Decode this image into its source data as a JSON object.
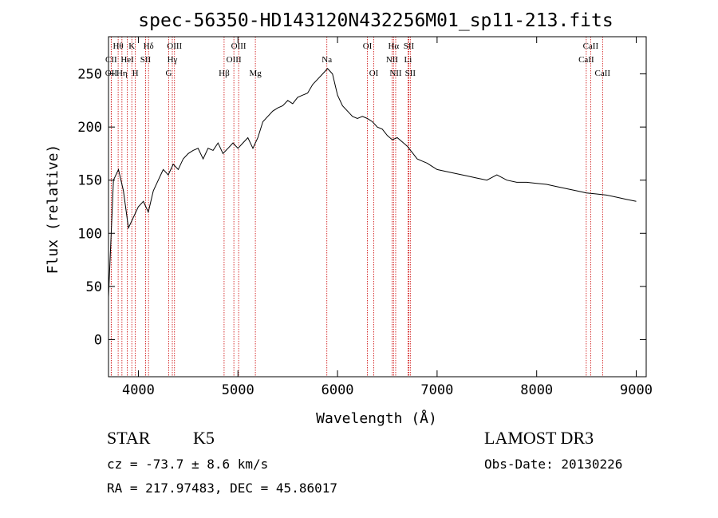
{
  "chart_data": {
    "type": "line",
    "title": "spec-56350-HD143120N432256M01_sp11-213.fits",
    "xlabel": "Wavelength (Å)",
    "ylabel": "Flux (relative)",
    "xlim": [
      3700,
      9100
    ],
    "ylim": [
      -35,
      285
    ],
    "xticks": [
      4000,
      5000,
      6000,
      7000,
      8000,
      9000
    ],
    "yticks": [
      0,
      50,
      100,
      150,
      200,
      250
    ],
    "grid": false,
    "series": [
      {
        "name": "spectrum",
        "color": "#000000",
        "x": [
          3700,
          3750,
          3800,
          3850,
          3900,
          3950,
          4000,
          4050,
          4100,
          4150,
          4200,
          4250,
          4300,
          4350,
          4400,
          4450,
          4500,
          4550,
          4600,
          4650,
          4700,
          4750,
          4800,
          4850,
          4900,
          4950,
          5000,
          5050,
          5100,
          5150,
          5200,
          5250,
          5300,
          5350,
          5400,
          5450,
          5500,
          5550,
          5600,
          5650,
          5700,
          5750,
          5800,
          5850,
          5900,
          5950,
          6000,
          6050,
          6100,
          6150,
          6200,
          6250,
          6300,
          6350,
          6400,
          6450,
          6500,
          6550,
          6600,
          6650,
          6700,
          6750,
          6800,
          6850,
          6900,
          6950,
          7000,
          7100,
          7200,
          7300,
          7400,
          7500,
          7600,
          7700,
          7800,
          7900,
          8000,
          8100,
          8200,
          8300,
          8400,
          8500,
          8600,
          8700,
          8800,
          8900,
          9000
        ],
        "y": [
          40,
          150,
          160,
          140,
          105,
          115,
          125,
          130,
          120,
          140,
          150,
          160,
          155,
          165,
          160,
          170,
          175,
          178,
          180,
          170,
          180,
          178,
          185,
          175,
          180,
          185,
          180,
          185,
          190,
          180,
          190,
          205,
          210,
          215,
          218,
          220,
          225,
          222,
          228,
          230,
          232,
          240,
          245,
          250,
          255,
          250,
          230,
          220,
          215,
          210,
          208,
          210,
          208,
          205,
          200,
          198,
          192,
          188,
          190,
          186,
          182,
          176,
          170,
          168,
          166,
          163,
          160,
          158,
          156,
          154,
          152,
          150,
          155,
          150,
          148,
          148,
          147,
          146,
          144,
          142,
          140,
          138,
          137,
          136,
          134,
          132,
          130
        ]
      }
    ],
    "line_labels": [
      {
        "label": "Hθ",
        "x": 3797,
        "row": 1
      },
      {
        "label": "CII",
        "x": 3727,
        "row": 2
      },
      {
        "label": "OII",
        "x": 3727,
        "row": 3
      },
      {
        "label": "Hη",
        "x": 3835,
        "row": 3
      },
      {
        "label": "HeI",
        "x": 3889,
        "row": 2
      },
      {
        "label": "K",
        "x": 3934,
        "row": 1
      },
      {
        "label": "H",
        "x": 3969,
        "row": 3
      },
      {
        "label": "SII",
        "x": 4072,
        "row": 2
      },
      {
        "label": "Hδ",
        "x": 4102,
        "row": 1
      },
      {
        "label": "OIII",
        "x": 4363,
        "row": 1
      },
      {
        "label": "Hγ",
        "x": 4341,
        "row": 2
      },
      {
        "label": "G",
        "x": 4305,
        "row": 3
      },
      {
        "label": "OIII",
        "x": 5007,
        "row": 1
      },
      {
        "label": "OIII",
        "x": 4959,
        "row": 2
      },
      {
        "label": "Hβ",
        "x": 4861,
        "row": 3
      },
      {
        "label": "Mg",
        "x": 5175,
        "row": 3
      },
      {
        "label": "Na",
        "x": 5893,
        "row": 2
      },
      {
        "label": "OI",
        "x": 6300,
        "row": 1
      },
      {
        "label": "OI",
        "x": 6364,
        "row": 3
      },
      {
        "label": "Hα",
        "x": 6563,
        "row": 1
      },
      {
        "label": "SII",
        "x": 6716,
        "row": 1
      },
      {
        "label": "NII",
        "x": 6548,
        "row": 2
      },
      {
        "label": "Li",
        "x": 6708,
        "row": 2
      },
      {
        "label": "NII",
        "x": 6584,
        "row": 3
      },
      {
        "label": "SII",
        "x": 6731,
        "row": 3
      },
      {
        "label": "CaII",
        "x": 8542,
        "row": 1
      },
      {
        "label": "CaII",
        "x": 8498,
        "row": 2
      },
      {
        "label": "CaII",
        "x": 8662,
        "row": 3
      }
    ]
  },
  "info": {
    "object_class": "STAR",
    "subclass": "K5",
    "survey": "LAMOST DR3",
    "cz": "cz = -73.7 ± 8.6 km/s",
    "obs_date": "Obs-Date: 20130226",
    "radec": "RA = 217.97483, DEC =  45.86017"
  }
}
